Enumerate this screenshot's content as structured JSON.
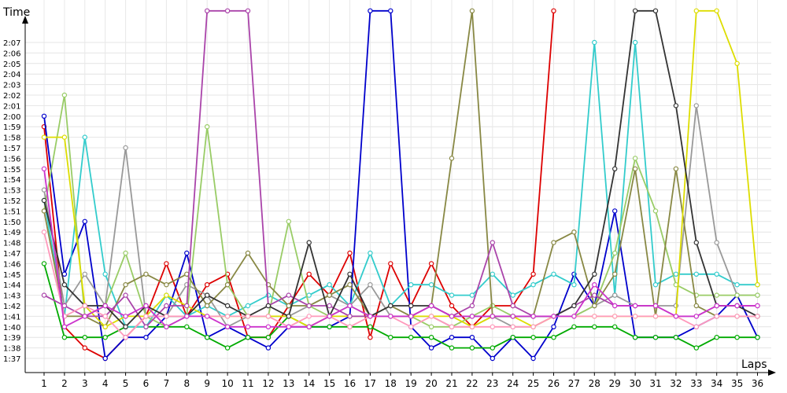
{
  "chart_data": {
    "type": "line",
    "ylabel": "Time",
    "xlabel": "Laps",
    "x": [
      1,
      2,
      3,
      4,
      5,
      6,
      7,
      8,
      9,
      10,
      11,
      12,
      13,
      14,
      15,
      16,
      17,
      18,
      19,
      20,
      21,
      22,
      23,
      24,
      25,
      26,
      27,
      28,
      29,
      30,
      31,
      32,
      33,
      34,
      35,
      36
    ],
    "y_ticks": [
      "1:37",
      "1:38",
      "1:39",
      "1:40",
      "1:41",
      "1:42",
      "1:43",
      "1:44",
      "1:45",
      "1:46",
      "1:47",
      "1:48",
      "1:49",
      "1:50",
      "1:51",
      "1:52",
      "1:53",
      "1:54",
      "1:55",
      "1:56",
      "1:57",
      "1:58",
      "1:59",
      "2:00",
      "2:01",
      "2:02",
      "2:03",
      "2:04",
      "2:05",
      "2:06",
      "2:07"
    ],
    "ylim_seconds": [
      96,
      128
    ],
    "grid": true,
    "series": [
      {
        "color": "#dd0000",
        "values": [
          119,
          100,
          98,
          97,
          99,
          101,
          106,
          101,
          104,
          105,
          99,
          99,
          102,
          105,
          103,
          107,
          99,
          106,
          102,
          106,
          102,
          100,
          102,
          102,
          105,
          130,
          null,
          null,
          null,
          null,
          null,
          null,
          null,
          null,
          null,
          null
        ]
      },
      {
        "color": "#0000cc",
        "values": [
          120,
          105,
          110,
          97,
          99,
          99,
          101,
          107,
          99,
          100,
          99,
          98,
          100,
          100,
          100,
          101,
          130,
          130,
          100,
          98,
          99,
          99,
          97,
          99,
          97,
          100,
          105,
          102,
          111,
          99,
          99,
          99,
          100,
          101,
          103,
          99
        ]
      },
      {
        "color": "#00aa00",
        "values": [
          106,
          99,
          99,
          99,
          100,
          100,
          100,
          100,
          99,
          98,
          99,
          99,
          101,
          100,
          100,
          100,
          100,
          99,
          99,
          99,
          98,
          98,
          98,
          99,
          99,
          99,
          100,
          100,
          100,
          99,
          99,
          99,
          98,
          99,
          99,
          99
        ]
      },
      {
        "color": "#33cccc",
        "values": [
          112,
          101,
          118,
          105,
          100,
          100,
          103,
          101,
          102,
          101,
          102,
          103,
          102,
          103,
          104,
          102,
          107,
          102,
          104,
          104,
          103,
          103,
          105,
          103,
          104,
          105,
          104,
          127,
          103,
          127,
          104,
          105,
          105,
          105,
          104,
          104
        ]
      },
      {
        "color": "#999999",
        "values": [
          113,
          102,
          105,
          102,
          117,
          101,
          101,
          104,
          103,
          100,
          101,
          101,
          101,
          102,
          103,
          102,
          104,
          101,
          101,
          101,
          100,
          100,
          101,
          100,
          100,
          101,
          101,
          102,
          103,
          102,
          102,
          102,
          121,
          108,
          103,
          103
        ]
      },
      {
        "color": "#99cc66",
        "values": [
          111,
          122,
          101,
          102,
          107,
          101,
          100,
          101,
          119,
          104,
          101,
          101,
          110,
          102,
          101,
          102,
          101,
          101,
          101,
          100,
          100,
          101,
          102,
          101,
          101,
          101,
          101,
          102,
          107,
          116,
          111,
          104,
          103,
          103,
          103,
          103
        ]
      },
      {
        "color": "#888844",
        "values": [
          111,
          101,
          101,
          100,
          104,
          105,
          104,
          105,
          102,
          104,
          107,
          104,
          102,
          102,
          103,
          104,
          101,
          102,
          101,
          102,
          116,
          130,
          101,
          101,
          101,
          108,
          109,
          102,
          105,
          115,
          101,
          115,
          102,
          101,
          101,
          101
        ]
      },
      {
        "color": "#dddd00",
        "values": [
          118,
          118,
          102,
          100,
          101,
          101,
          103,
          102,
          101,
          101,
          101,
          101,
          101,
          100,
          101,
          101,
          101,
          101,
          101,
          101,
          101,
          100,
          101,
          101,
          100,
          101,
          101,
          101,
          101,
          101,
          101,
          101,
          130,
          130,
          125,
          104
        ]
      },
      {
        "color": "#aa44aa",
        "values": [
          103,
          102,
          101,
          101,
          103,
          100,
          102,
          102,
          130,
          130,
          130,
          102,
          103,
          102,
          102,
          101,
          101,
          101,
          101,
          102,
          101,
          102,
          108,
          102,
          101,
          101,
          102,
          103,
          102,
          102,
          102,
          101,
          101,
          102,
          102,
          102
        ]
      },
      {
        "color": "#333333",
        "values": [
          112,
          104,
          102,
          102,
          100,
          102,
          101,
          101,
          103,
          102,
          101,
          102,
          101,
          108,
          101,
          105,
          101,
          102,
          102,
          102,
          101,
          101,
          101,
          101,
          101,
          101,
          102,
          105,
          115,
          130,
          130,
          121,
          108,
          102,
          102,
          101
        ]
      },
      {
        "color": "#ff99bb",
        "values": [
          109,
          101,
          102,
          101,
          99,
          101,
          101,
          101,
          101,
          101,
          101,
          101,
          100,
          101,
          101,
          100,
          101,
          101,
          100,
          101,
          100,
          100,
          100,
          100,
          100,
          101,
          101,
          101,
          101,
          101,
          101,
          101,
          100,
          101,
          101,
          101
        ]
      },
      {
        "color": "#cc33cc",
        "values": [
          115,
          100,
          101,
          102,
          101,
          102,
          100,
          101,
          101,
          100,
          100,
          100,
          100,
          100,
          101,
          102,
          101,
          101,
          101,
          102,
          101,
          101,
          101,
          101,
          101,
          101,
          101,
          104,
          102,
          102,
          102,
          101,
          101,
          102,
          102,
          102
        ]
      }
    ]
  }
}
